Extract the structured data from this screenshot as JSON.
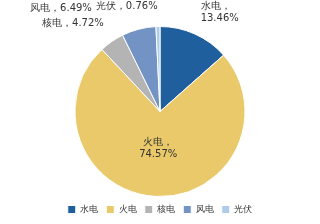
{
  "chart_data": {
    "type": "pie",
    "categories": [
      "水电",
      "火电",
      "核电",
      "风电",
      "光伏"
    ],
    "values": [
      13.46,
      74.57,
      4.72,
      6.49,
      0.76
    ],
    "value_labels": [
      "水电，\n13.46%",
      "火电，\n74.57%",
      "核电，4.72%",
      "风电，6.49%",
      "光伏，0.76%"
    ],
    "colors": [
      "#1f5f9e",
      "#e9c96a",
      "#b4b4b4",
      "#7393c4",
      "#aecbea"
    ],
    "data_labels": true,
    "legend": "bottom"
  }
}
